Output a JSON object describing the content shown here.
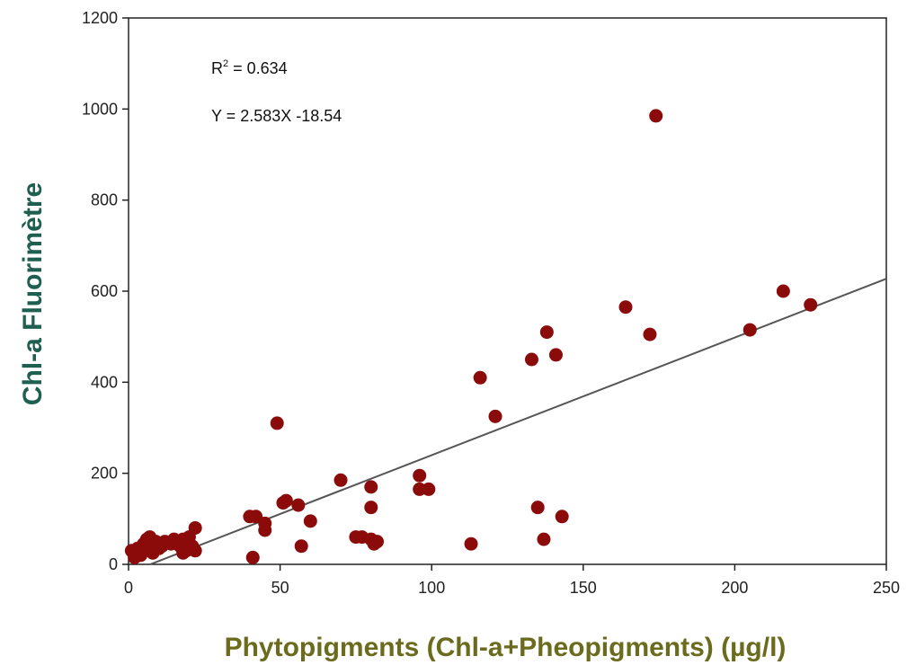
{
  "chart_data": {
    "type": "scatter",
    "title": "",
    "xlabel": "Phytopigments (Chl-a+Pheopigments) (µg/l)",
    "ylabel": "Chl-a Fluorimètre",
    "xlim": [
      0,
      250
    ],
    "ylim": [
      0,
      1200
    ],
    "x_ticks": [
      "0",
      "50",
      "100",
      "150",
      "200",
      "250"
    ],
    "y_ticks": [
      "0",
      "200",
      "400",
      "600",
      "800",
      "1000",
      "1200"
    ],
    "grid": false,
    "annotations": {
      "r2_prefix": "R",
      "r2_exp": "2",
      "r2_value": " = 0.634",
      "equation": "Y = 2.583X -18.54"
    },
    "regression": {
      "slope": 2.583,
      "intercept": -18.54,
      "x_range": [
        7.2,
        250
      ]
    },
    "colors": {
      "points": "#8b0a0a",
      "line": "#555555",
      "ylabel": "#1f5f4f",
      "xlabel": "#6b6b1e"
    },
    "points": [
      [
        1,
        30
      ],
      [
        2,
        15
      ],
      [
        3,
        35
      ],
      [
        4,
        20
      ],
      [
        5,
        45
      ],
      [
        6,
        55
      ],
      [
        7,
        60
      ],
      [
        7,
        40
      ],
      [
        8,
        25
      ],
      [
        9,
        50
      ],
      [
        10,
        35
      ],
      [
        10,
        45
      ],
      [
        11,
        40
      ],
      [
        12,
        50
      ],
      [
        14,
        45
      ],
      [
        15,
        55
      ],
      [
        17,
        40
      ],
      [
        18,
        55
      ],
      [
        18,
        25
      ],
      [
        19,
        30
      ],
      [
        20,
        60
      ],
      [
        21,
        40
      ],
      [
        22,
        80
      ],
      [
        22,
        30
      ],
      [
        40,
        105
      ],
      [
        41,
        15
      ],
      [
        42,
        105
      ],
      [
        45,
        90
      ],
      [
        45,
        75
      ],
      [
        49,
        310
      ],
      [
        51,
        135
      ],
      [
        52,
        140
      ],
      [
        56,
        130
      ],
      [
        57,
        40
      ],
      [
        60,
        95
      ],
      [
        70,
        185
      ],
      [
        75,
        60
      ],
      [
        77,
        60
      ],
      [
        80,
        55
      ],
      [
        80,
        125
      ],
      [
        80,
        170
      ],
      [
        81,
        45
      ],
      [
        82,
        50
      ],
      [
        96,
        195
      ],
      [
        96,
        165
      ],
      [
        99,
        165
      ],
      [
        113,
        45
      ],
      [
        116,
        410
      ],
      [
        121,
        325
      ],
      [
        133,
        450
      ],
      [
        135,
        125
      ],
      [
        137,
        55
      ],
      [
        138,
        510
      ],
      [
        141,
        460
      ],
      [
        143,
        105
      ],
      [
        164,
        565
      ],
      [
        172,
        505
      ],
      [
        174,
        985
      ],
      [
        205,
        515
      ],
      [
        216,
        600
      ],
      [
        225,
        570
      ]
    ]
  }
}
